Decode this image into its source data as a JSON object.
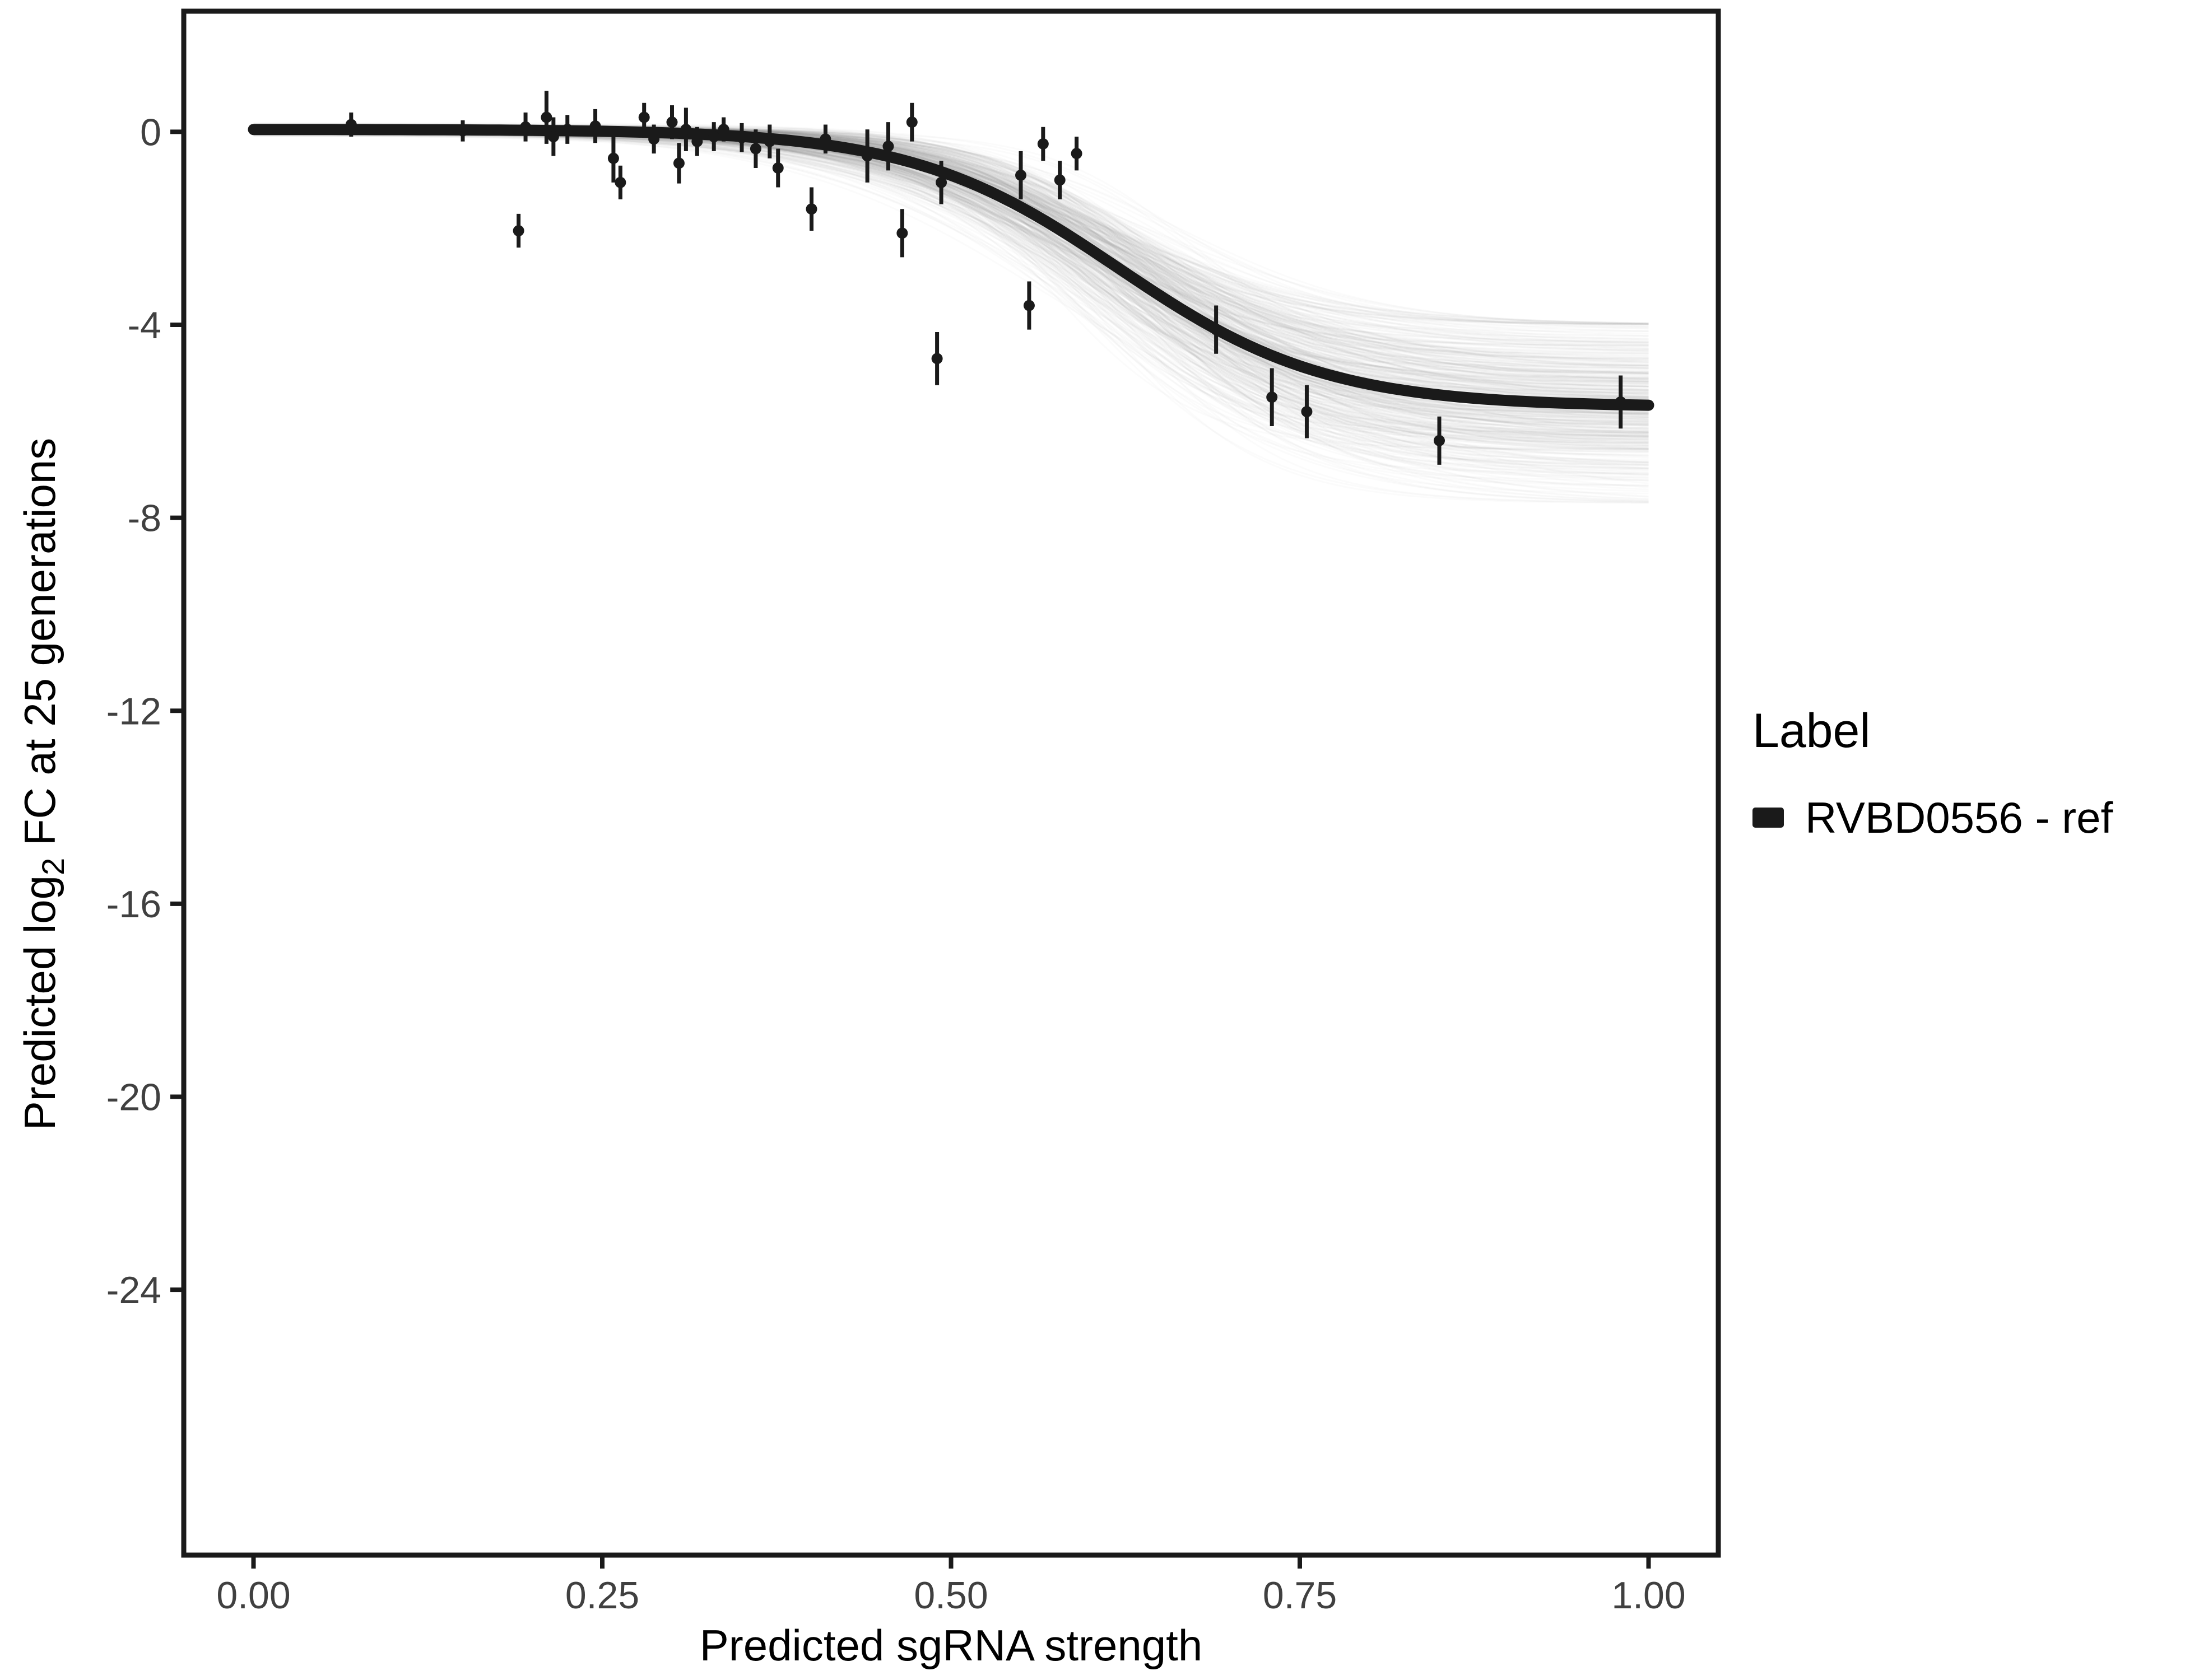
{
  "figure": {
    "background": "#ffffff"
  },
  "legend": {
    "title": "Label",
    "items": [
      {
        "label": "RVBD0556 - ref",
        "marker": "square",
        "color": "#1a1a1a"
      }
    ]
  },
  "chart_data": {
    "type": "scatter",
    "title": "",
    "xlabel": "Predicted sgRNA strength",
    "ylabel": {
      "prefix": "Predicted  log",
      "subscript": "2",
      "suffix": " FC at 25 generations"
    },
    "xlim": [
      -0.05,
      1.05
    ],
    "ylim": [
      -29.5,
      2.5
    ],
    "x_ticks": [
      0.0,
      0.25,
      0.5,
      0.75,
      1.0
    ],
    "x_tick_labels": [
      "0.00",
      "0.25",
      "0.50",
      "0.75",
      "1.00"
    ],
    "y_ticks": [
      0,
      -4,
      -8,
      -12,
      -16,
      -20,
      -24
    ],
    "y_tick_labels": [
      "0",
      "-4",
      "-8",
      "-12",
      "-16",
      "-20",
      "-24"
    ],
    "grid": false,
    "legend_position": "right",
    "colors": {
      "points": "#1a1a1a",
      "fit_line": "#1a1a1a",
      "band": "#777777",
      "axis_text": "#404040",
      "axis_title": "#000000",
      "panel_border": "#1a1a1a"
    },
    "fit_curve": {
      "model": "logistic",
      "top": 0.05,
      "bottom": -5.7,
      "x0": 0.62,
      "k": 13.5,
      "line_width": 20
    },
    "uncertainty_band": {
      "n_draws": 450,
      "opacity": 0.03,
      "line_width": 3,
      "spread": {
        "bottom_sd": 1.0,
        "x0_sd": 0.022,
        "k_logsd": 0.17,
        "top_sd": 0.05
      },
      "bottom_range": [
        -7.7,
        -4.0
      ]
    },
    "series": [
      {
        "name": "RVBD0556 - ref",
        "type": "points_with_errorbars",
        "points": [
          [
            0.07,
            0.15,
            0.25
          ],
          [
            0.15,
            0.02,
            0.22
          ],
          [
            0.19,
            -2.05,
            0.35
          ],
          [
            0.195,
            0.1,
            0.3
          ],
          [
            0.21,
            0.3,
            0.55
          ],
          [
            0.215,
            -0.1,
            0.4
          ],
          [
            0.225,
            0.05,
            0.3
          ],
          [
            0.245,
            0.12,
            0.35
          ],
          [
            0.258,
            -0.55,
            0.5
          ],
          [
            0.263,
            -1.05,
            0.35
          ],
          [
            0.28,
            0.3,
            0.3
          ],
          [
            0.287,
            -0.15,
            0.3
          ],
          [
            0.3,
            0.2,
            0.35
          ],
          [
            0.305,
            -0.65,
            0.42
          ],
          [
            0.31,
            0.05,
            0.45
          ],
          [
            0.318,
            -0.2,
            0.3
          ],
          [
            0.33,
            -0.1,
            0.3
          ],
          [
            0.337,
            0.05,
            0.25
          ],
          [
            0.35,
            -0.12,
            0.3
          ],
          [
            0.36,
            -0.35,
            0.4
          ],
          [
            0.37,
            -0.2,
            0.35
          ],
          [
            0.376,
            -0.75,
            0.4
          ],
          [
            0.4,
            -1.6,
            0.45
          ],
          [
            0.41,
            -0.15,
            0.3
          ],
          [
            0.44,
            -0.5,
            0.55
          ],
          [
            0.455,
            -0.3,
            0.5
          ],
          [
            0.465,
            -2.1,
            0.5
          ],
          [
            0.472,
            0.2,
            0.4
          ],
          [
            0.49,
            -4.7,
            0.55
          ],
          [
            0.493,
            -1.05,
            0.45
          ],
          [
            0.55,
            -0.9,
            0.5
          ],
          [
            0.556,
            -3.6,
            0.5
          ],
          [
            0.566,
            -0.25,
            0.35
          ],
          [
            0.578,
            -1.0,
            0.4
          ],
          [
            0.59,
            -0.45,
            0.35
          ],
          [
            0.69,
            -4.1,
            0.5
          ],
          [
            0.73,
            -5.5,
            0.6
          ],
          [
            0.755,
            -5.8,
            0.55
          ],
          [
            0.85,
            -6.4,
            0.5
          ],
          [
            0.98,
            -5.6,
            0.55
          ]
        ]
      }
    ]
  }
}
